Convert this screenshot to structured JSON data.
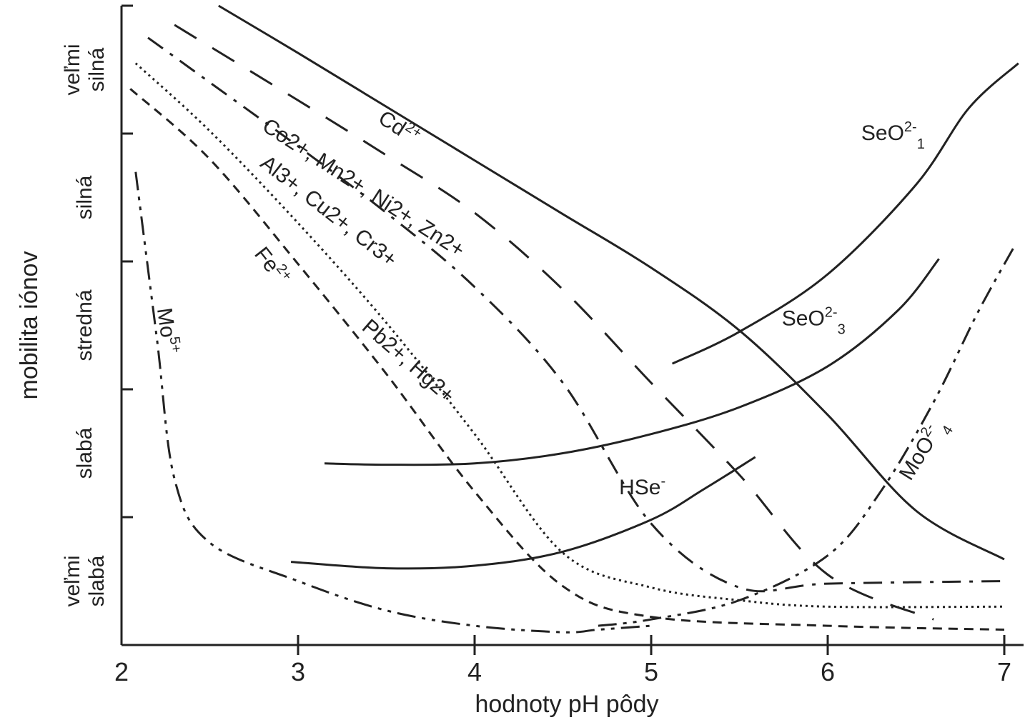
{
  "chart_data": {
    "type": "line",
    "xlabel": "hodnoty pH pôdy",
    "ylabel": "mobilita iónov",
    "xlim": [
      2,
      7
    ],
    "x_ticks": [
      "2",
      "3",
      "4",
      "5",
      "6",
      "7"
    ],
    "y_categories": [
      "veľmi slabá",
      "slabá",
      "stredná",
      "silná",
      "veľmi silná"
    ],
    "ylim": [
      0,
      5
    ],
    "series": [
      {
        "name": "Cd2+",
        "label": "Cd",
        "sup": "2+",
        "style": "solid",
        "x": [
          2.55,
          3,
          3.5,
          4,
          4.5,
          5,
          5.5,
          6,
          6.5,
          7
        ],
        "y": [
          5,
          4.63,
          4.21,
          3.79,
          3.37,
          2.95,
          2.46,
          1.8,
          1.05,
          0.67
        ]
      },
      {
        "name": "Co2+, Mn2+, Ni2+, Zn2+",
        "label": "Co2+, Mn2+, Ni2+, Zn2+",
        "style": "long-dash",
        "x": [
          2.3,
          3,
          3.5,
          4,
          4.5,
          5,
          5.5,
          6,
          6.6
        ],
        "y": [
          4.85,
          4.26,
          3.83,
          3.38,
          2.78,
          2.05,
          1.33,
          0.55,
          0.2
        ]
      },
      {
        "name": "Al3+, Cu2+, Cr3+",
        "label": "Al3+, Cu2+, Cr3+",
        "style": "dash-dot",
        "x": [
          2.15,
          2.5,
          3,
          3.5,
          4,
          4.5,
          5,
          5.5,
          6,
          7
        ],
        "y": [
          4.75,
          4.4,
          3.9,
          3.38,
          2.8,
          2.05,
          0.95,
          0.45,
          0.48,
          0.5
        ]
      },
      {
        "name": "Pb2+, Hg2+",
        "label": "Pb2+, Hg2+",
        "style": "dotted",
        "x": [
          2.08,
          2.5,
          3,
          3.5,
          4,
          4.5,
          5,
          5.5,
          6,
          7
        ],
        "y": [
          4.55,
          4.02,
          3.3,
          2.52,
          1.65,
          0.72,
          0.45,
          0.35,
          0.3,
          0.3
        ]
      },
      {
        "name": "Fe2+",
        "label": "Fe",
        "sup": "2+",
        "style": "short-dash",
        "x": [
          2.05,
          2.5,
          3,
          3.5,
          4,
          4.5,
          5,
          6,
          7
        ],
        "y": [
          4.35,
          3.8,
          2.98,
          2.12,
          1.2,
          0.46,
          0.22,
          0.15,
          0.12
        ]
      },
      {
        "name": "Mo5+",
        "label": "Mo",
        "sup": "5+",
        "style": "dash-dot-dot",
        "x": [
          2.08,
          2.2,
          2.3,
          2.5,
          3,
          3.5,
          4,
          4.5,
          4.7,
          5
        ],
        "y": [
          3.7,
          2.4,
          1.3,
          0.8,
          0.5,
          0.27,
          0.15,
          0.1,
          0.12,
          0.15
        ]
      },
      {
        "name": "SeO2-1",
        "label": "SeO",
        "sup": "2-",
        "sub": "1",
        "style": "solid",
        "x": [
          5.12,
          5.5,
          6,
          6.5,
          6.8,
          7.08
        ],
        "y": [
          2.2,
          2.45,
          2.9,
          3.6,
          4.2,
          4.55
        ]
      },
      {
        "name": "SeO2-3",
        "label": "SeO",
        "sup": "2-",
        "sub": "3",
        "style": "solid",
        "x": [
          3.15,
          3.5,
          4,
          4.5,
          5,
          5.5,
          6,
          6.4,
          6.63
        ],
        "y": [
          1.42,
          1.41,
          1.42,
          1.5,
          1.65,
          1.86,
          2.18,
          2.62,
          3.02
        ]
      },
      {
        "name": "HSe-",
        "label": "HSe",
        "sup": "-",
        "style": "solid",
        "x": [
          2.96,
          3.5,
          4,
          4.5,
          5,
          5.3,
          5.59
        ],
        "y": [
          0.65,
          0.6,
          0.62,
          0.73,
          0.98,
          1.22,
          1.47
        ]
      },
      {
        "name": "MoO2-4",
        "label": "MoO",
        "sup": "2-",
        "sub": "4",
        "style": "dash-dot-dot",
        "x": [
          4.7,
          5,
          5.5,
          6,
          6.3,
          6.6,
          6.85,
          7.05
        ],
        "y": [
          0.15,
          0.2,
          0.35,
          0.7,
          1.2,
          1.9,
          2.6,
          3.1
        ]
      }
    ]
  }
}
